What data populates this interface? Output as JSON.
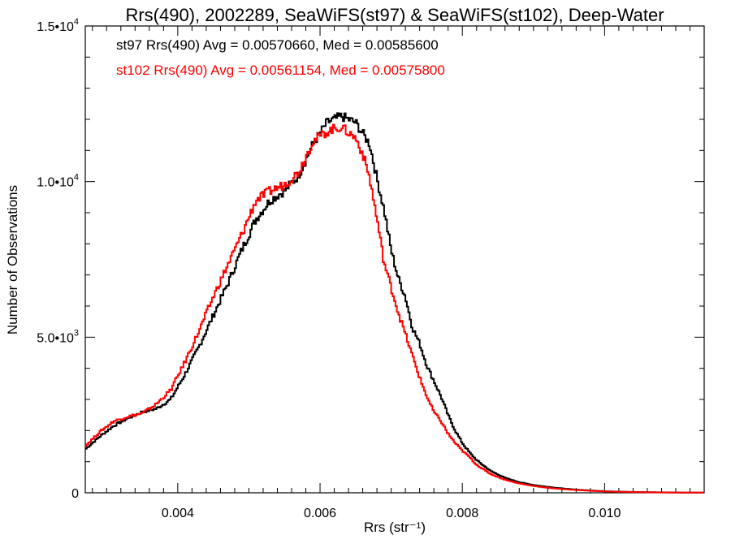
{
  "chart_data": {
    "type": "line",
    "title": "Rrs(490), 2002289, SeaWiFS(st97) & SeaWiFS(st102), Deep-Water",
    "xlabel": "Rrs (str⁻¹)",
    "ylabel": "Number of Observations",
    "xlim": [
      0.0027,
      0.0114
    ],
    "ylim": [
      0,
      15000
    ],
    "xticks": [
      {
        "value": 0.004,
        "label": "0.004"
      },
      {
        "value": 0.006,
        "label": "0.006"
      },
      {
        "value": 0.008,
        "label": "0.008"
      },
      {
        "value": 0.01,
        "label": "0.010"
      }
    ],
    "yticks": [
      {
        "value": 0,
        "mant": "0",
        "exp": ""
      },
      {
        "value": 5000,
        "mant": "5.0•10",
        "exp": "3"
      },
      {
        "value": 10000,
        "mant": "1.0•10",
        "exp": "4"
      },
      {
        "value": 15000,
        "mant": "1.5•10",
        "exp": "4"
      }
    ],
    "annotations": [
      {
        "text": "st97 Rrs(490) Avg = 0.00570660, Med = 0.00585600",
        "color": "#000000"
      },
      {
        "text": "st102 Rrs(490) Avg = 0.00561154, Med = 0.00575800",
        "color": "#ff0000"
      }
    ],
    "series": [
      {
        "color": "#000000",
        "x": [
          0.0027,
          0.0029,
          0.0031,
          0.0033,
          0.0035,
          0.0037,
          0.0039,
          0.0041,
          0.0043,
          0.0045,
          0.0047,
          0.0049,
          0.0051,
          0.0053,
          0.0055,
          0.0057,
          0.0059,
          0.0061,
          0.0062,
          0.0063,
          0.0065,
          0.0067,
          0.0068,
          0.0069,
          0.007,
          0.0071,
          0.0072,
          0.0073,
          0.0074,
          0.0075,
          0.0076,
          0.0077,
          0.0078,
          0.0079,
          0.008,
          0.0081,
          0.0082,
          0.0084,
          0.0086,
          0.0088,
          0.009,
          0.0092,
          0.0094,
          0.0096,
          0.0098,
          0.01,
          0.0103,
          0.0106,
          0.011,
          0.0114
        ],
        "y": [
          1400,
          1800,
          2150,
          2400,
          2600,
          2700,
          3000,
          3800,
          4700,
          5700,
          6700,
          7800,
          8800,
          9400,
          9700,
          10200,
          11200,
          11900,
          12000,
          12100,
          11900,
          11200,
          10100,
          9100,
          7800,
          6900,
          6300,
          5300,
          4800,
          4100,
          3600,
          3100,
          2500,
          2000,
          1600,
          1300,
          1050,
          700,
          480,
          340,
          250,
          190,
          140,
          100,
          75,
          50,
          30,
          20,
          10,
          5
        ]
      },
      {
        "color": "#ff0000",
        "x": [
          0.0027,
          0.0029,
          0.0031,
          0.0033,
          0.0035,
          0.0037,
          0.0039,
          0.0041,
          0.0043,
          0.0045,
          0.0047,
          0.0049,
          0.0051,
          0.0053,
          0.0055,
          0.0057,
          0.0059,
          0.0061,
          0.0062,
          0.0063,
          0.0065,
          0.0066,
          0.0067,
          0.0068,
          0.0069,
          0.007,
          0.0071,
          0.0072,
          0.0073,
          0.0074,
          0.0075,
          0.0076,
          0.0077,
          0.0078,
          0.0079,
          0.008,
          0.0081,
          0.0082,
          0.0084,
          0.0086,
          0.0088,
          0.009,
          0.0092,
          0.0094,
          0.0096,
          0.0098,
          0.01,
          0.0103,
          0.0106,
          0.011,
          0.0114
        ],
        "y": [
          1500,
          1950,
          2300,
          2450,
          2550,
          2850,
          3300,
          4200,
          5200,
          6300,
          7300,
          8300,
          9400,
          9700,
          9900,
          10300,
          11300,
          11600,
          11700,
          11750,
          11400,
          10900,
          10100,
          8800,
          7400,
          6600,
          5800,
          5100,
          4400,
          3700,
          3100,
          2600,
          2300,
          1900,
          1600,
          1350,
          1150,
          900,
          600,
          420,
          300,
          220,
          160,
          120,
          90,
          65,
          45,
          28,
          16,
          8,
          4
        ]
      }
    ]
  }
}
